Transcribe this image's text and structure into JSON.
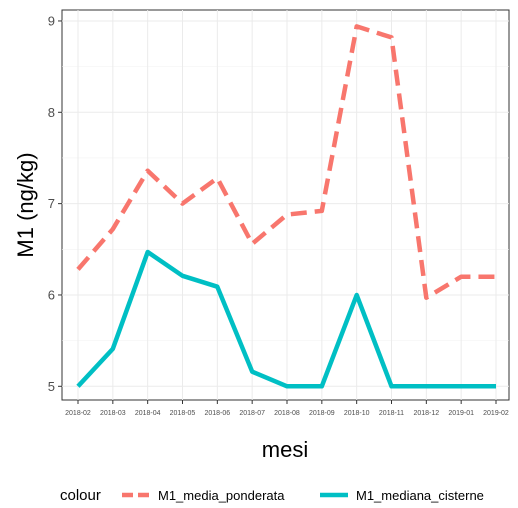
{
  "chart_data": {
    "type": "line",
    "xlabel": "mesi",
    "ylabel": "M1 (ng/kg)",
    "categories": [
      "2018-02",
      "2018-03",
      "2018-04",
      "2018-05",
      "2018-06",
      "2018-07",
      "2018-08",
      "2018-09",
      "2018-10",
      "2018-11",
      "2018-12",
      "2019-01",
      "2019-02"
    ],
    "yticks": [
      "5",
      "6",
      "7",
      "8",
      "9"
    ],
    "ylim": [
      4.85,
      9.12
    ],
    "grid": true,
    "legend_title": "colour",
    "legend_position": "bottom",
    "series": [
      {
        "name": "M1_media_ponderata",
        "color": "#F8766D",
        "dash": "dashed",
        "values": [
          6.28,
          6.72,
          7.36,
          7.0,
          7.28,
          6.56,
          6.88,
          6.92,
          8.94,
          8.82,
          5.97,
          6.2,
          6.2
        ]
      },
      {
        "name": "M1_mediana_cisterne",
        "color": "#00BFC4",
        "dash": "solid",
        "values": [
          5.0,
          5.41,
          6.47,
          6.21,
          6.09,
          5.16,
          5.0,
          5.0,
          6.0,
          5.0,
          5.0,
          5.0,
          5.0
        ]
      }
    ]
  }
}
